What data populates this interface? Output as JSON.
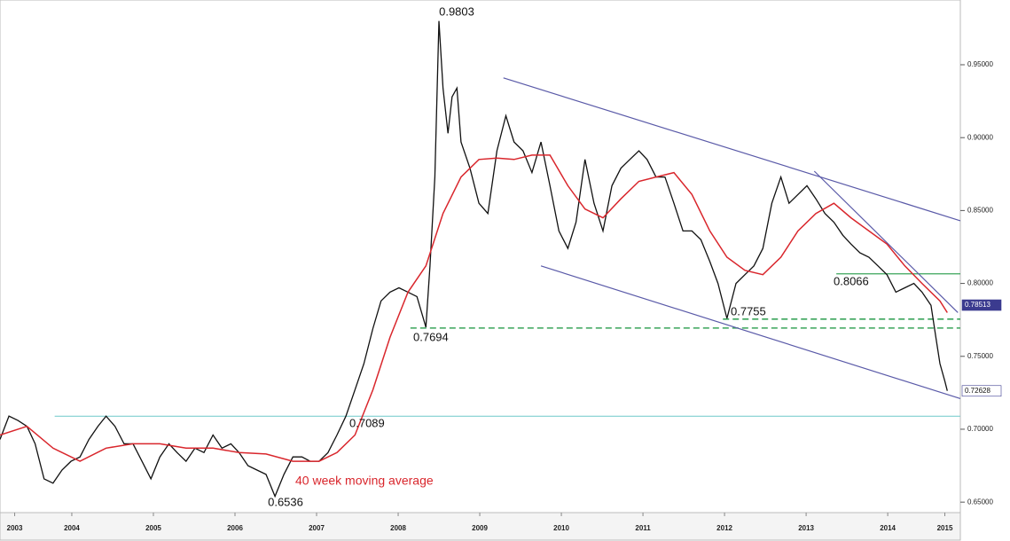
{
  "chart_data": {
    "type": "line",
    "xlim": [
      2003.62,
      2015.39
    ],
    "ylim": [
      0.6428,
      0.9944
    ],
    "xticks": [
      {
        "value": 2003.8,
        "label": "2003"
      },
      {
        "value": 2004.5,
        "label": "2004"
      },
      {
        "value": 2005.5,
        "label": "2005"
      },
      {
        "value": 2006.5,
        "label": "2006"
      },
      {
        "value": 2007.5,
        "label": "2007"
      },
      {
        "value": 2008.5,
        "label": "2008"
      },
      {
        "value": 2009.5,
        "label": "2009"
      },
      {
        "value": 2010.5,
        "label": "2010"
      },
      {
        "value": 2011.5,
        "label": "2011"
      },
      {
        "value": 2012.5,
        "label": "2012"
      },
      {
        "value": 2013.5,
        "label": "2013"
      },
      {
        "value": 2014.5,
        "label": "2014"
      },
      {
        "value": 2015.2,
        "label": "2015"
      }
    ],
    "yticks": [
      {
        "value": 0.65,
        "label": "0.65000"
      },
      {
        "value": 0.7,
        "label": "0.70000"
      },
      {
        "value": 0.75,
        "label": "0.75000"
      },
      {
        "value": 0.8,
        "label": "0.80000"
      },
      {
        "value": 0.85,
        "label": "0.85000"
      },
      {
        "value": 0.9,
        "label": "0.90000"
      },
      {
        "value": 0.95,
        "label": "0.95000"
      }
    ],
    "series": [
      {
        "color": "#111111",
        "x": [
          2003.62,
          2003.73,
          2003.84,
          2003.95,
          2004.05,
          2004.16,
          2004.27,
          2004.38,
          2004.49,
          2004.6,
          2004.71,
          2004.82,
          2004.92,
          2005.03,
          2005.14,
          2005.25,
          2005.36,
          2005.47,
          2005.58,
          2005.69,
          2005.79,
          2005.9,
          2006.01,
          2006.12,
          2006.23,
          2006.34,
          2006.45,
          2006.55,
          2006.66,
          2006.77,
          2006.88,
          2006.99,
          2007.1,
          2007.21,
          2007.32,
          2007.42,
          2007.53,
          2007.64,
          2007.75,
          2007.86,
          2007.97,
          2008.08,
          2008.19,
          2008.29,
          2008.4,
          2008.51,
          2008.62,
          2008.73,
          2008.84,
          2008.89,
          2008.95,
          2009.0,
          2009.05,
          2009.11,
          2009.16,
          2009.22,
          2009.27,
          2009.38,
          2009.49,
          2009.6,
          2009.71,
          2009.82,
          2009.92,
          2010.03,
          2010.14,
          2010.25,
          2010.36,
          2010.47,
          2010.58,
          2010.68,
          2010.79,
          2010.9,
          2011.01,
          2011.12,
          2011.23,
          2011.34,
          2011.45,
          2011.55,
          2011.66,
          2011.77,
          2011.88,
          2011.99,
          2012.1,
          2012.21,
          2012.32,
          2012.42,
          2012.53,
          2012.64,
          2012.75,
          2012.86,
          2012.97,
          2013.08,
          2013.19,
          2013.29,
          2013.4,
          2013.51,
          2013.62,
          2013.73,
          2013.84,
          2013.95,
          2014.05,
          2014.16,
          2014.27,
          2014.38,
          2014.49,
          2014.6,
          2014.71,
          2014.82,
          2014.92,
          2015.03,
          2015.09,
          2015.14,
          2015.2,
          2015.23
        ],
        "values": [
          0.693,
          0.709,
          0.706,
          0.702,
          0.69,
          0.666,
          0.663,
          0.672,
          0.678,
          0.681,
          0.693,
          0.702,
          0.709,
          0.702,
          0.69,
          0.69,
          0.678,
          0.666,
          0.681,
          0.69,
          0.684,
          0.678,
          0.687,
          0.684,
          0.696,
          0.687,
          0.69,
          0.684,
          0.675,
          0.672,
          0.669,
          0.654,
          0.669,
          0.681,
          0.681,
          0.678,
          0.678,
          0.684,
          0.696,
          0.709,
          0.727,
          0.745,
          0.769,
          0.788,
          0.794,
          0.797,
          0.794,
          0.791,
          0.77,
          0.812,
          0.873,
          0.98,
          0.934,
          0.903,
          0.928,
          0.934,
          0.897,
          0.879,
          0.855,
          0.848,
          0.891,
          0.915,
          0.897,
          0.891,
          0.876,
          0.897,
          0.867,
          0.836,
          0.824,
          0.842,
          0.885,
          0.855,
          0.836,
          0.867,
          0.879,
          0.885,
          0.891,
          0.885,
          0.873,
          0.873,
          0.855,
          0.836,
          0.836,
          0.83,
          0.815,
          0.8,
          0.776,
          0.8,
          0.806,
          0.812,
          0.824,
          0.855,
          0.873,
          0.855,
          0.861,
          0.867,
          0.858,
          0.848,
          0.842,
          0.833,
          0.827,
          0.821,
          0.818,
          0.812,
          0.806,
          0.794,
          0.797,
          0.8,
          0.794,
          0.785,
          0.763,
          0.745,
          0.733,
          0.7263
        ]
      },
      {
        "name": "40 week moving average",
        "color": "#d9262c",
        "x": [
          2003.62,
          2003.95,
          2004.27,
          2004.6,
          2004.92,
          2005.25,
          2005.58,
          2005.9,
          2006.23,
          2006.55,
          2006.88,
          2007.21,
          2007.53,
          2007.75,
          2007.97,
          2008.19,
          2008.4,
          2008.62,
          2008.84,
          2009.05,
          2009.27,
          2009.49,
          2009.71,
          2009.92,
          2010.14,
          2010.36,
          2010.58,
          2010.79,
          2011.01,
          2011.23,
          2011.45,
          2011.66,
          2011.88,
          2012.1,
          2012.32,
          2012.53,
          2012.75,
          2012.97,
          2013.19,
          2013.4,
          2013.62,
          2013.84,
          2014.05,
          2014.27,
          2014.49,
          2014.71,
          2014.92,
          2015.14,
          2015.23
        ],
        "values": [
          0.696,
          0.702,
          0.687,
          0.678,
          0.687,
          0.69,
          0.69,
          0.687,
          0.687,
          0.684,
          0.683,
          0.678,
          0.678,
          0.684,
          0.696,
          0.727,
          0.763,
          0.794,
          0.812,
          0.848,
          0.873,
          0.885,
          0.886,
          0.885,
          0.888,
          0.888,
          0.867,
          0.851,
          0.845,
          0.858,
          0.87,
          0.873,
          0.876,
          0.861,
          0.836,
          0.818,
          0.809,
          0.806,
          0.818,
          0.836,
          0.848,
          0.855,
          0.845,
          0.836,
          0.827,
          0.812,
          0.8,
          0.788,
          0.78
        ]
      }
    ],
    "trend_lines": [
      {
        "color": "#5a5aa8",
        "x": [
          2009.79,
          2015.39
        ],
        "y": [
          0.941,
          0.843
        ]
      },
      {
        "color": "#5a5aa8",
        "x": [
          2010.25,
          2015.39
        ],
        "y": [
          0.812,
          0.721
        ]
      },
      {
        "color": "#5a5aa8",
        "x": [
          2013.6,
          2015.36
        ],
        "y": [
          0.877,
          0.78
        ]
      }
    ],
    "levels": [
      {
        "value": 0.7089,
        "start": 2004.29,
        "color": "#7fcfd0",
        "dashed": false
      },
      {
        "value": 0.8066,
        "start": 2013.87,
        "color": "#3aa45a",
        "dashed": false
      },
      {
        "value": 0.7755,
        "start": 2012.48,
        "color": "#3aa45a",
        "dashed": true
      },
      {
        "value": 0.7694,
        "start": 2008.65,
        "color": "#3aa45a",
        "dashed": true
      }
    ],
    "annotations": [
      "0.9803",
      "0.7694",
      "0.7089",
      "0.6536",
      "0.7755",
      "0.8066"
    ],
    "price_tags": [
      {
        "label": "0.78513",
        "value": 0.78513,
        "color": "#3b3b8f"
      },
      {
        "label": "0.72628",
        "value": 0.72628,
        "color": "#ffffff"
      }
    ]
  }
}
